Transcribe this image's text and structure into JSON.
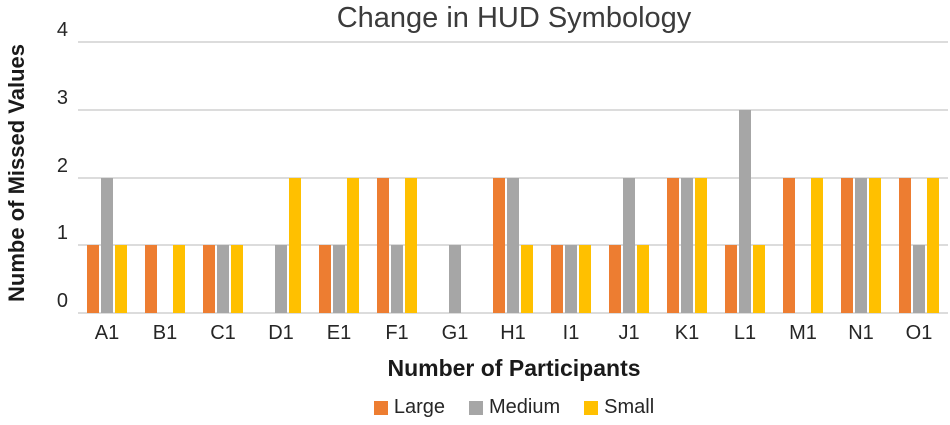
{
  "chart_data": {
    "type": "bar",
    "title": "Change in HUD Symbology",
    "xlabel": "Number of Participants",
    "ylabel": "Numbe of Missed Values",
    "categories": [
      "A1",
      "B1",
      "C1",
      "D1",
      "E1",
      "F1",
      "G1",
      "H1",
      "I1",
      "J1",
      "K1",
      "L1",
      "M1",
      "N1",
      "O1"
    ],
    "series": [
      {
        "name": "Large",
        "color": "#ED7D31",
        "values": [
          1,
          1,
          1,
          0,
          1,
          2,
          0,
          2,
          1,
          1,
          2,
          1,
          2,
          2,
          2
        ]
      },
      {
        "name": "Medium",
        "color": "#A6A6A6",
        "values": [
          2,
          0,
          1,
          1,
          1,
          1,
          1,
          2,
          1,
          2,
          2,
          3,
          0,
          2,
          1
        ]
      },
      {
        "name": "Small",
        "color": "#FFC000",
        "values": [
          1,
          1,
          1,
          2,
          2,
          2,
          0,
          1,
          1,
          1,
          2,
          1,
          2,
          2,
          2
        ]
      }
    ],
    "ylim": [
      0,
      4
    ],
    "yticks": [
      0,
      1,
      2,
      3,
      4
    ],
    "grid": true,
    "legend_position": "bottom",
    "gridline_color": "#dcdcdc"
  }
}
